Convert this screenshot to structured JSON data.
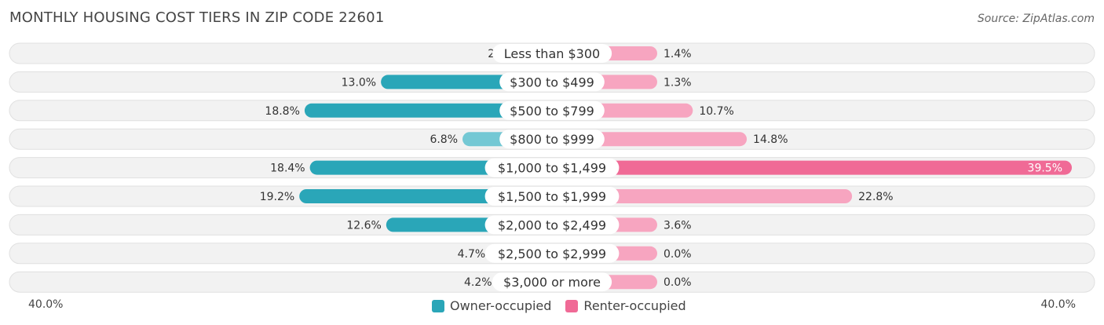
{
  "header": {
    "title": "MONTHLY HOUSING COST TIERS IN ZIP CODE 22601",
    "source": "Source: ZipAtlas.com"
  },
  "axis": {
    "left_label": "40.0%",
    "right_label": "40.0%"
  },
  "legend": [
    {
      "label": "Owner-occupied",
      "color": "#2aa6b8"
    },
    {
      "label": "Renter-occupied",
      "color": "#f06a96"
    }
  ],
  "colors": {
    "owner_strong": "#2aa6b8",
    "owner_light": "#74c8d4",
    "renter_strong": "#f06a96",
    "renter_light": "#f7a5c0",
    "row_bg": "#f2f2f2"
  },
  "chart_data": {
    "type": "bar",
    "orientation": "diverging-horizontal",
    "categories": [
      "Less than $300",
      "$300 to $499",
      "$500 to $799",
      "$800 to $999",
      "$1,000 to $1,499",
      "$1,500 to $1,999",
      "$2,000 to $2,499",
      "$2,500 to $2,999",
      "$3,000 or more"
    ],
    "series": [
      {
        "name": "Owner-occupied",
        "values": [
          2.4,
          13.0,
          18.8,
          6.8,
          18.4,
          19.2,
          12.6,
          4.7,
          4.2
        ],
        "labels": [
          "2.4%",
          "13.0%",
          "18.8%",
          "6.8%",
          "18.4%",
          "19.2%",
          "12.6%",
          "4.7%",
          "4.2%"
        ]
      },
      {
        "name": "Renter-occupied",
        "values": [
          1.4,
          1.3,
          10.7,
          14.8,
          39.5,
          22.8,
          3.6,
          0.0,
          0.0
        ],
        "labels": [
          "1.4%",
          "1.3%",
          "10.7%",
          "14.8%",
          "39.5%",
          "22.8%",
          "3.6%",
          "0.0%",
          "0.0%"
        ]
      }
    ],
    "xlim": [
      -40,
      40
    ],
    "legend_position": "bottom-center"
  }
}
